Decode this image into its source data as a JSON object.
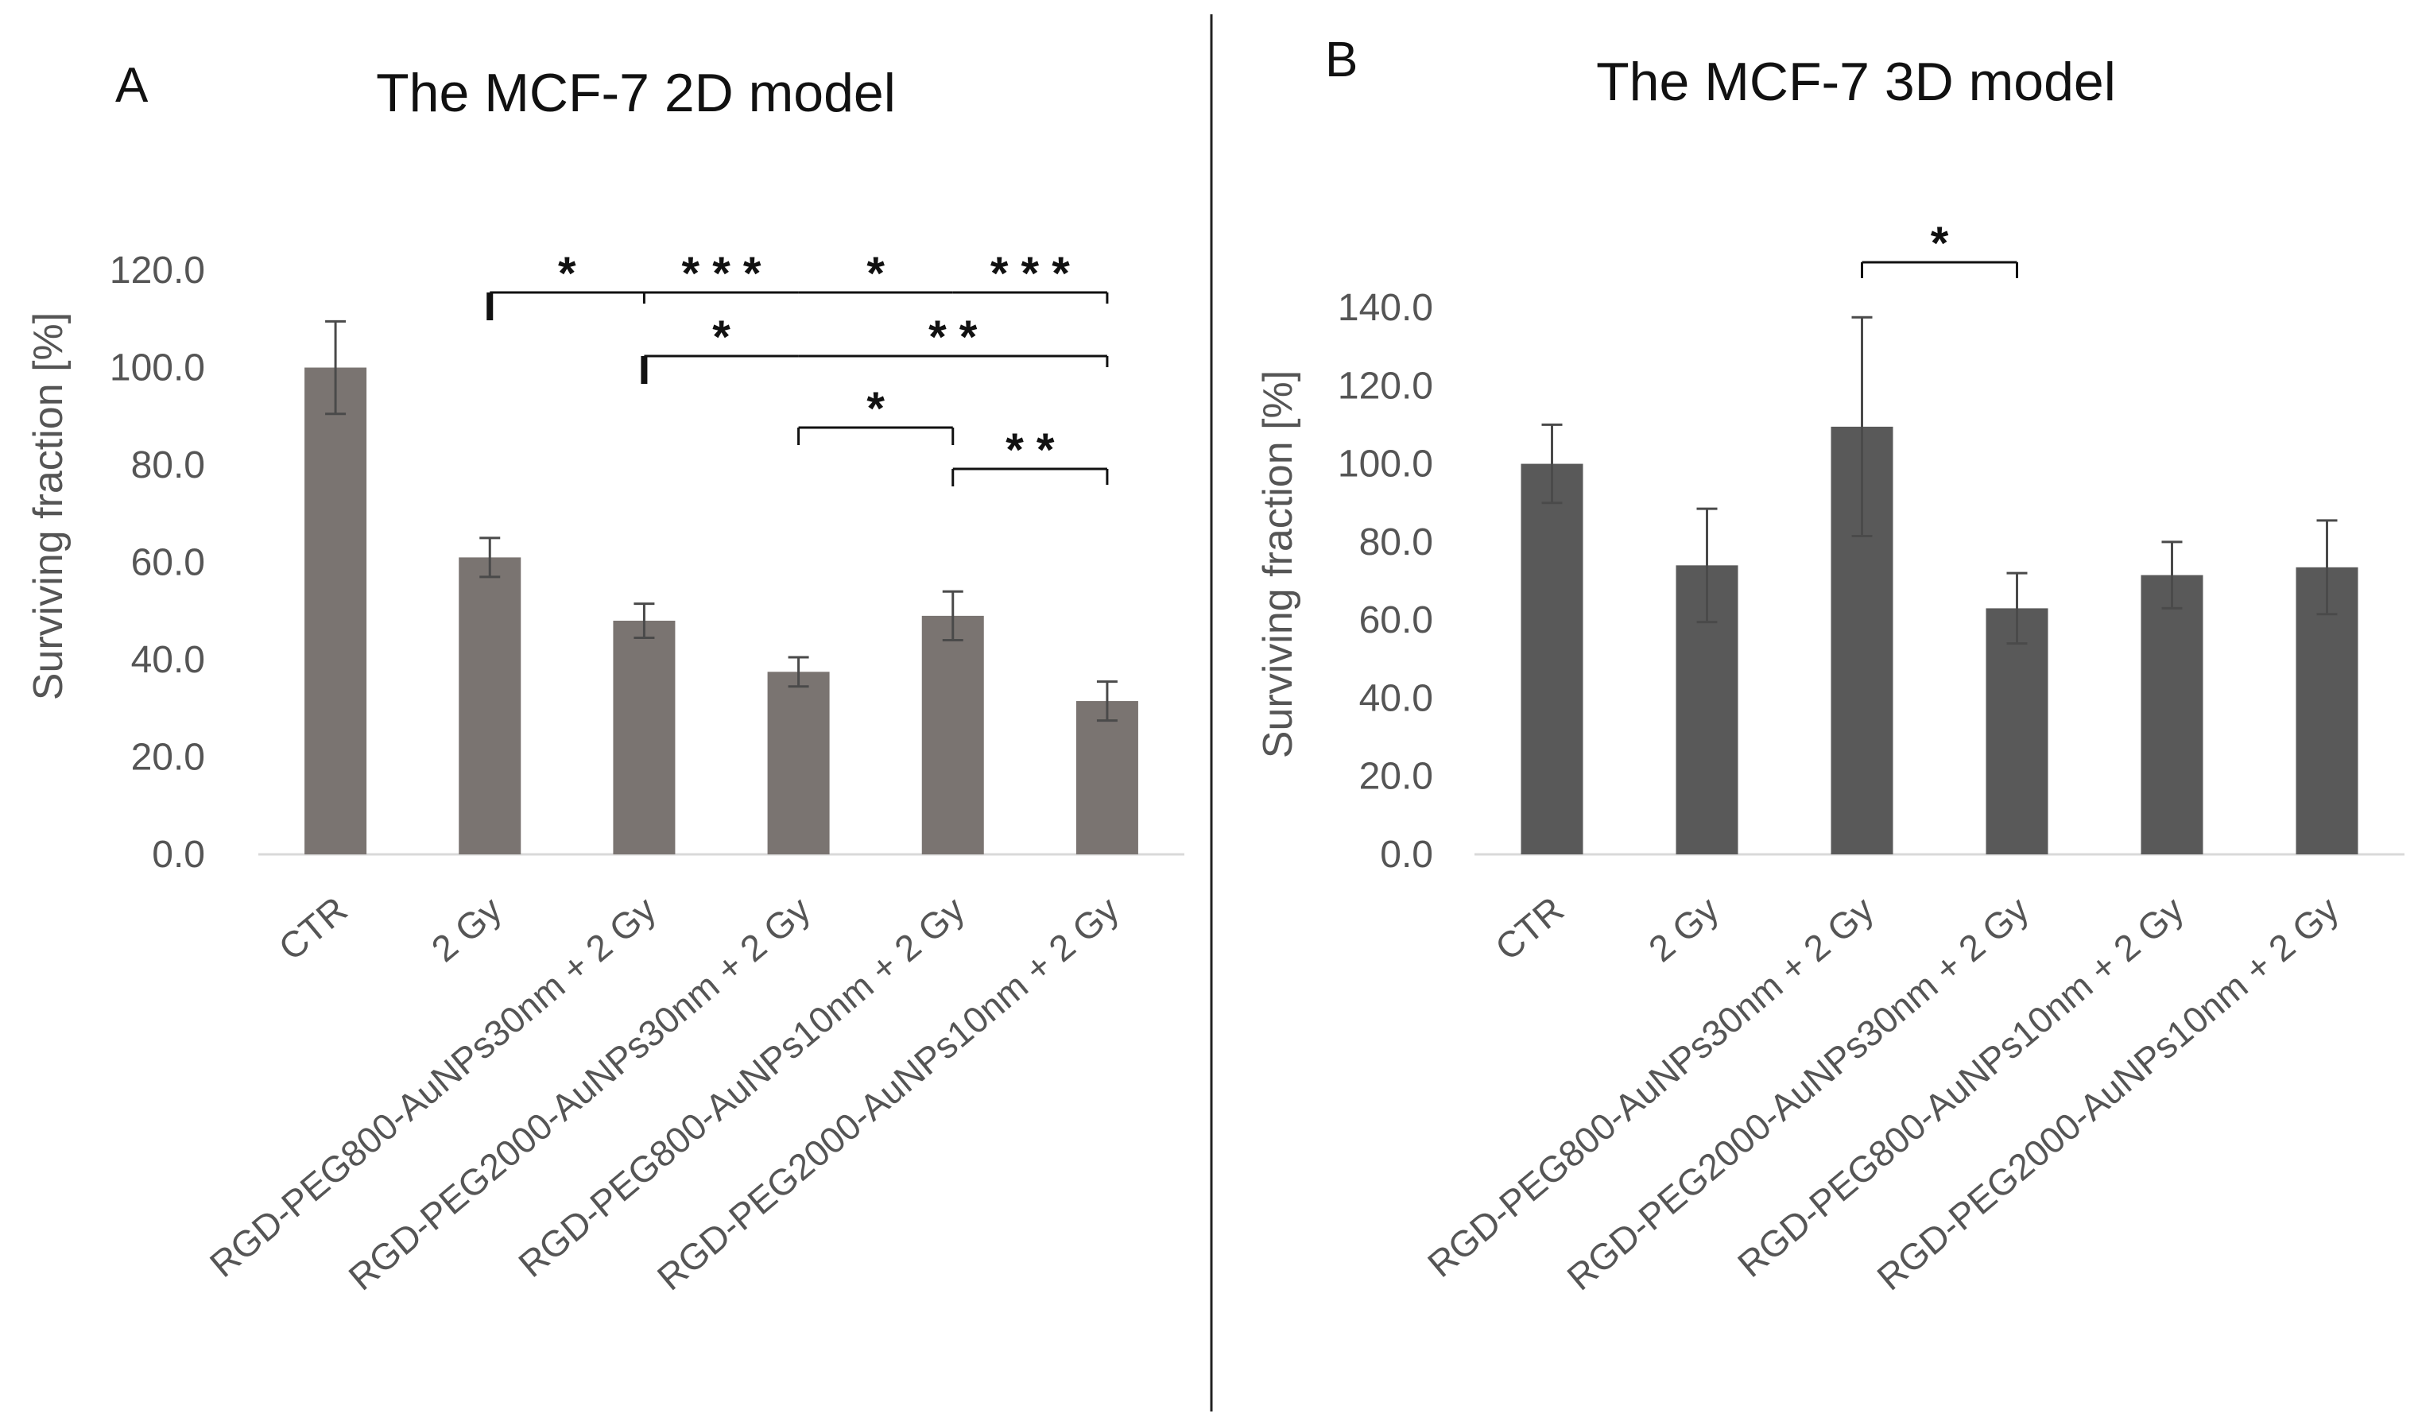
{
  "chart_data": [
    {
      "type": "bar",
      "panel_label": "A",
      "title": "The MCF-7 2D model",
      "xlabel": "",
      "ylabel": "Surviving fraction [%]",
      "ylim": [
        0,
        120
      ],
      "yticks": [
        "0.0",
        "20.0",
        "40.0",
        "60.0",
        "80.0",
        "100.0",
        "120.0"
      ],
      "grid": false,
      "categories": [
        "CTR",
        "2 Gy",
        "RGD-PEG800-AuNPs30nm + 2 Gy",
        "RGD-PEG2000-AuNPs30nm + 2 Gy",
        "RGD-PEG800-AuNPs10nm + 2 Gy",
        "RGD-PEG2000-AuNPs10nm + 2 Gy"
      ],
      "values": [
        100.0,
        61.0,
        48.0,
        37.5,
        49.0,
        31.5
      ],
      "errors": [
        9.5,
        4.0,
        3.5,
        3.0,
        5.0,
        4.0
      ],
      "bar_color": "#7a7471",
      "significance": [
        {
          "from": 1,
          "to": 2,
          "label": "*"
        },
        {
          "from": 2,
          "to": 3,
          "label": "***"
        },
        {
          "from": 3,
          "to": 4,
          "label": "*"
        },
        {
          "from": 4,
          "to": 5,
          "label": "***"
        },
        {
          "from": 2,
          "to": 3,
          "label": "*"
        },
        {
          "from": 3,
          "to": 5,
          "label": "**"
        },
        {
          "from": 3,
          "to": 4,
          "label": "*"
        },
        {
          "from": 4,
          "to": 5,
          "label": "**"
        }
      ]
    },
    {
      "type": "bar",
      "panel_label": "B",
      "title": "The MCF-7 3D model",
      "xlabel": "",
      "ylabel": "Surviving fraction [%]",
      "ylim": [
        0,
        140
      ],
      "yticks": [
        "0.0",
        "20.0",
        "40.0",
        "60.0",
        "80.0",
        "100.0",
        "120.0",
        "140.0"
      ],
      "grid": false,
      "categories": [
        "CTR",
        "2 Gy",
        "RGD-PEG800-AuNPs30nm + 2 Gy",
        "RGD-PEG2000-AuNPs30nm + 2 Gy",
        "RGD-PEG800-AuNPs10nm + 2 Gy",
        "RGD-PEG2000-AuNPs10nm + 2 Gy"
      ],
      "values": [
        100.0,
        74.0,
        109.5,
        63.0,
        71.5,
        73.5
      ],
      "errors": [
        10.0,
        14.5,
        28.0,
        9.0,
        8.5,
        12.0
      ],
      "bar_color": "#595959",
      "significance": [
        {
          "from": 2,
          "to": 3,
          "label": "*"
        }
      ]
    }
  ]
}
